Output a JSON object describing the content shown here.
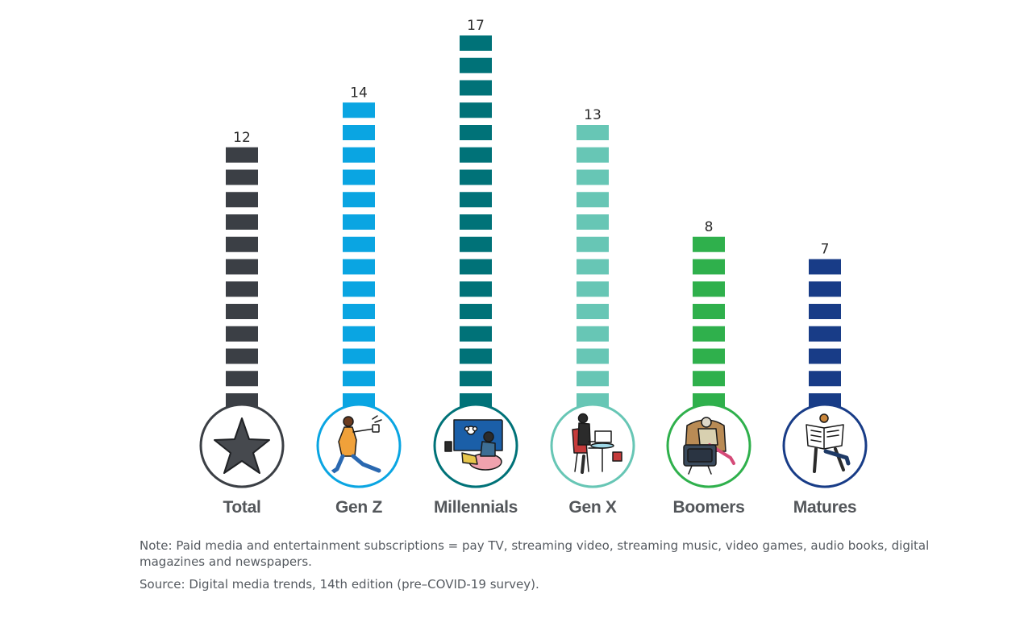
{
  "chart_data": {
    "type": "bar",
    "title": "",
    "xlabel": "",
    "ylabel": "",
    "categories": [
      "Total",
      "Gen Z",
      "Millennials",
      "Gen X",
      "Boomers",
      "Matures"
    ],
    "values": [
      12,
      14,
      17,
      13,
      8,
      7
    ],
    "colors": [
      "#3b3f45",
      "#0aa5e2",
      "#007278",
      "#67c6b5",
      "#2fb04c",
      "#183c87"
    ],
    "icons": [
      "star-icon",
      "gen-z-person-icon",
      "millennials-gaming-icon",
      "gen-x-laptop-icon",
      "boomers-tv-icon",
      "matures-newspaper-icon"
    ],
    "grid": false,
    "legend": "none"
  },
  "notes": {
    "note": "Note: Paid media and entertainment subscriptions = pay TV, streaming video, streaming music, video games, audio books, digital magazines and newspapers.",
    "source": "Source: Digital media trends, 14th edition (pre–COVID-19 survey)."
  }
}
